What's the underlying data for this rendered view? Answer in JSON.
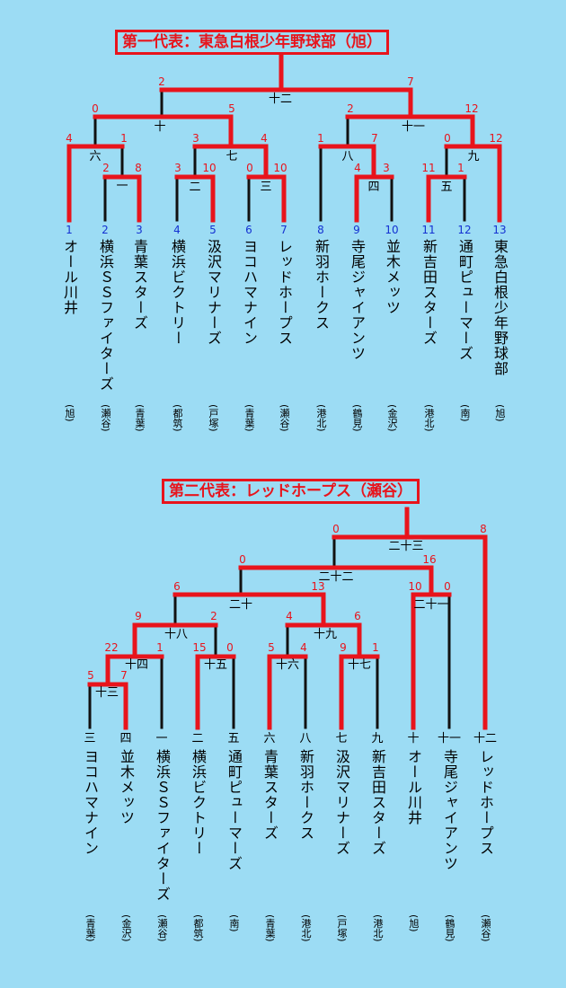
{
  "colors": {
    "background": "#9cdcf4",
    "winner": "#e8141c",
    "line": "#111111",
    "seed": "#1432d2"
  },
  "bracket1": {
    "title": "第一代表：東急白根少年野球部（旭）",
    "teams": [
      {
        "seed": "1",
        "name": "オール川井",
        "aff": "(旭)"
      },
      {
        "seed": "2",
        "name": "横浜ＳＳファイターズ",
        "aff": "(瀬谷)"
      },
      {
        "seed": "3",
        "name": "青葉スターズ",
        "aff": "(青葉)"
      },
      {
        "seed": "4",
        "name": "横浜ビクトリー",
        "aff": "(都筑)"
      },
      {
        "seed": "5",
        "name": "汲沢マリナーズ",
        "aff": "(戸塚)"
      },
      {
        "seed": "6",
        "name": "ヨコハマナイン",
        "aff": "(青葉)"
      },
      {
        "seed": "7",
        "name": "レッドホープス",
        "aff": "(瀬谷)"
      },
      {
        "seed": "8",
        "name": "新羽ホークス",
        "aff": "(港北)"
      },
      {
        "seed": "9",
        "name": "寺尾ジャイアンツ",
        "aff": "(鶴見)"
      },
      {
        "seed": "10",
        "name": "並木メッツ",
        "aff": "(金沢)"
      },
      {
        "seed": "11",
        "name": "新吉田スターズ",
        "aff": "(港北)"
      },
      {
        "seed": "12",
        "name": "通町ピューマーズ",
        "aff": "(南)"
      },
      {
        "seed": "13",
        "name": "東急白根少年野球部",
        "aff": "(旭)"
      }
    ],
    "games": [
      {
        "no": "一",
        "a": "2",
        "b": "8"
      },
      {
        "no": "二",
        "a": "3",
        "b": "10"
      },
      {
        "no": "三",
        "a": "0",
        "b": "10"
      },
      {
        "no": "四",
        "a": "4",
        "b": "3"
      },
      {
        "no": "五",
        "a": "11",
        "b": "1"
      },
      {
        "no": "六",
        "a": "4",
        "b": "1"
      },
      {
        "no": "七",
        "a": "3",
        "b": "4"
      },
      {
        "no": "八",
        "a": "1",
        "b": "7"
      },
      {
        "no": "九",
        "a": "0",
        "b": "12"
      },
      {
        "no": "十",
        "a": "0",
        "b": "5"
      },
      {
        "no": "十一",
        "a": "2",
        "b": "12"
      },
      {
        "no": "十二",
        "a": "2",
        "b": "7"
      }
    ]
  },
  "bracket2": {
    "title": "第二代表：レッドホープス（瀬谷）",
    "teams": [
      {
        "no": "三",
        "name": "ヨコハマナイン",
        "aff": "(青葉)"
      },
      {
        "no": "四",
        "name": "並木メッツ",
        "aff": "(金沢)"
      },
      {
        "no": "一",
        "name": "横浜ＳＳファイターズ",
        "aff": "(瀬谷)"
      },
      {
        "no": "二",
        "name": "横浜ビクトリー",
        "aff": "(都筑)"
      },
      {
        "no": "五",
        "name": "通町ピューマーズ",
        "aff": "(南)"
      },
      {
        "no": "六",
        "name": "青葉スターズ",
        "aff": "(青葉)"
      },
      {
        "no": "八",
        "name": "新羽ホークス",
        "aff": "(港北)"
      },
      {
        "no": "七",
        "name": "汲沢マリナーズ",
        "aff": "(戸塚)"
      },
      {
        "no": "九",
        "name": "新吉田スターズ",
        "aff": "(港北)"
      },
      {
        "no": "十",
        "name": "オール川井",
        "aff": "(旭)"
      },
      {
        "no": "十一",
        "name": "寺尾ジャイアンツ",
        "aff": "(鶴見)"
      },
      {
        "no": "十二",
        "name": "レッドホープス",
        "aff": "(瀬谷)"
      }
    ],
    "games": [
      {
        "no": "十三",
        "a": "5",
        "b": "7"
      },
      {
        "no": "十四",
        "a": "22",
        "b": "1"
      },
      {
        "no": "十五",
        "a": "15",
        "b": "0"
      },
      {
        "no": "十六",
        "a": "5",
        "b": "4"
      },
      {
        "no": "十七",
        "a": "9",
        "b": "1"
      },
      {
        "no": "十八",
        "a": "9",
        "b": "2"
      },
      {
        "no": "十九",
        "a": "4",
        "b": "6"
      },
      {
        "no": "二十",
        "a": "6",
        "b": "13"
      },
      {
        "no": "二十一",
        "a": "10",
        "b": "0"
      },
      {
        "no": "二十二",
        "a": "0",
        "b": "16"
      },
      {
        "no": "二十三",
        "a": "0",
        "b": "8"
      }
    ]
  }
}
